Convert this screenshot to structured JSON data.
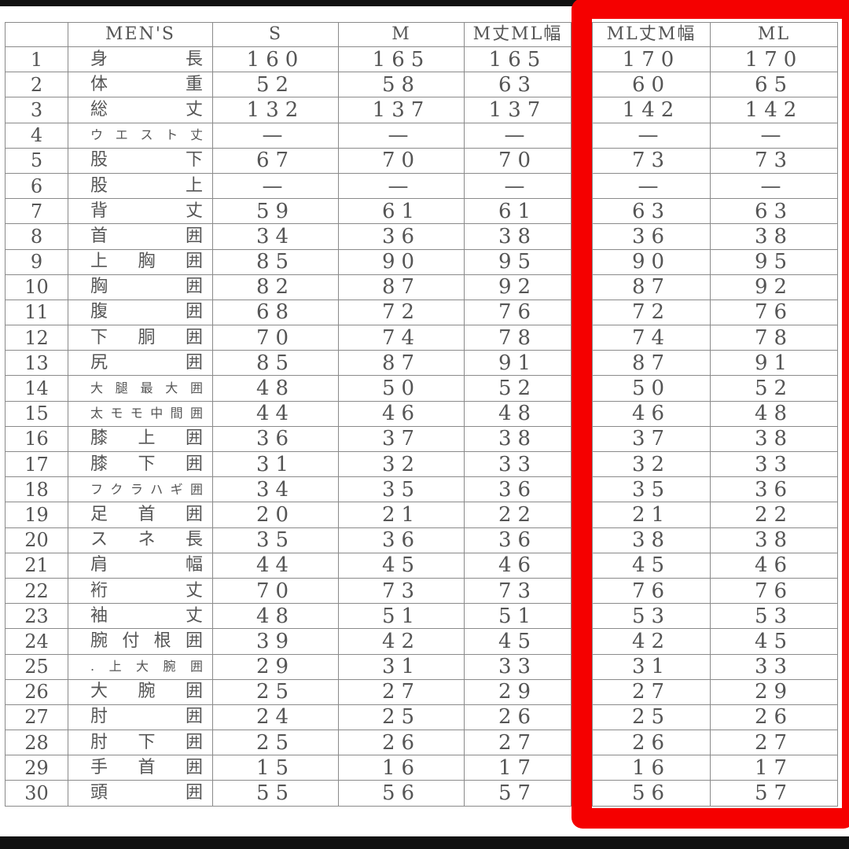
{
  "headers": [
    "",
    "MEN'S",
    "S",
    "M",
    "M丈ML幅",
    "ML丈M幅",
    "ML"
  ],
  "highlight_color": "#f50000",
  "rows": [
    {
      "no": "1",
      "label": "身長",
      "v": [
        "160",
        "165",
        "165",
        "170",
        "170"
      ]
    },
    {
      "no": "2",
      "label": "体重",
      "v": [
        "52",
        "58",
        "63",
        "60",
        "65"
      ]
    },
    {
      "no": "3",
      "label": "総丈",
      "v": [
        "132",
        "137",
        "137",
        "142",
        "142"
      ]
    },
    {
      "no": "4",
      "label": "ウエスト丈",
      "v": [
        "—",
        "—",
        "—",
        "—",
        "—"
      ]
    },
    {
      "no": "5",
      "label": "股下",
      "v": [
        "67",
        "70",
        "70",
        "73",
        "73"
      ]
    },
    {
      "no": "6",
      "label": "股上",
      "v": [
        "—",
        "—",
        "—",
        "—",
        "—"
      ]
    },
    {
      "no": "7",
      "label": "背丈",
      "v": [
        "59",
        "61",
        "61",
        "63",
        "63"
      ]
    },
    {
      "no": "8",
      "label": "首囲",
      "v": [
        "34",
        "36",
        "38",
        "36",
        "38"
      ]
    },
    {
      "no": "9",
      "label": "上胸囲",
      "v": [
        "85",
        "90",
        "95",
        "90",
        "95"
      ]
    },
    {
      "no": "10",
      "label": "胸囲",
      "v": [
        "82",
        "87",
        "92",
        "87",
        "92"
      ]
    },
    {
      "no": "11",
      "label": "腹囲",
      "v": [
        "68",
        "72",
        "76",
        "72",
        "76"
      ]
    },
    {
      "no": "12",
      "label": "下胴囲",
      "v": [
        "70",
        "74",
        "78",
        "74",
        "78"
      ]
    },
    {
      "no": "13",
      "label": "尻囲",
      "v": [
        "85",
        "87",
        "91",
        "87",
        "91"
      ]
    },
    {
      "no": "14",
      "label": "大腿最大囲",
      "v": [
        "48",
        "50",
        "52",
        "50",
        "52"
      ]
    },
    {
      "no": "15",
      "label": "太モモ中間囲",
      "v": [
        "44",
        "46",
        "48",
        "46",
        "48"
      ]
    },
    {
      "no": "16",
      "label": "膝上囲",
      "v": [
        "36",
        "37",
        "38",
        "37",
        "38"
      ]
    },
    {
      "no": "17",
      "label": "膝下囲",
      "v": [
        "31",
        "32",
        "33",
        "32",
        "33"
      ]
    },
    {
      "no": "18",
      "label": "フクラハギ囲",
      "v": [
        "34",
        "35",
        "36",
        "35",
        "36"
      ]
    },
    {
      "no": "19",
      "label": "足首囲",
      "v": [
        "20",
        "21",
        "22",
        "21",
        "22"
      ]
    },
    {
      "no": "20",
      "label": "スネ長",
      "v": [
        "35",
        "36",
        "36",
        "38",
        "38"
      ]
    },
    {
      "no": "21",
      "label": "肩幅",
      "v": [
        "44",
        "45",
        "46",
        "45",
        "46"
      ]
    },
    {
      "no": "22",
      "label": "裄丈",
      "v": [
        "70",
        "73",
        "73",
        "76",
        "76"
      ]
    },
    {
      "no": "23",
      "label": "袖丈",
      "v": [
        "48",
        "51",
        "51",
        "53",
        "53"
      ]
    },
    {
      "no": "24",
      "label": "腕付根囲",
      "v": [
        "39",
        "42",
        "45",
        "42",
        "45"
      ]
    },
    {
      "no": "25",
      "label": ".上大腕囲",
      "v": [
        "29",
        "31",
        "33",
        "31",
        "33"
      ]
    },
    {
      "no": "26",
      "label": "大腕囲",
      "v": [
        "25",
        "27",
        "29",
        "27",
        "29"
      ]
    },
    {
      "no": "27",
      "label": "肘囲",
      "v": [
        "24",
        "25",
        "26",
        "25",
        "26"
      ]
    },
    {
      "no": "28",
      "label": "肘下囲",
      "v": [
        "25",
        "26",
        "27",
        "26",
        "27"
      ]
    },
    {
      "no": "29",
      "label": "手首囲",
      "v": [
        "15",
        "16",
        "17",
        "16",
        "17"
      ]
    },
    {
      "no": "30",
      "label": "頭囲",
      "v": [
        "55",
        "56",
        "57",
        "56",
        "57"
      ]
    }
  ]
}
